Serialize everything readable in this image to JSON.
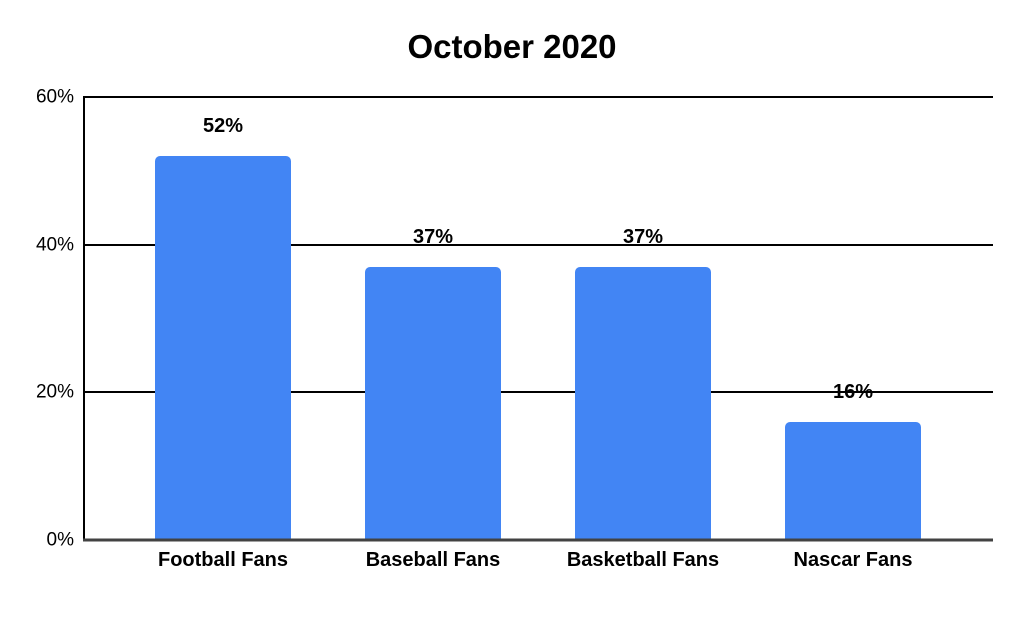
{
  "chart_data": {
    "type": "bar",
    "title": "October 2020",
    "categories": [
      "Football Fans",
      "Baseball Fans",
      "Basketball Fans",
      "Nascar Fans"
    ],
    "values": [
      52,
      37,
      37,
      16
    ],
    "value_labels": [
      "52%",
      "37%",
      "37%",
      "16%"
    ],
    "y_ticks": [
      {
        "value": 0,
        "label": "0%"
      },
      {
        "value": 20,
        "label": "20%"
      },
      {
        "value": 40,
        "label": "40%"
      },
      {
        "value": 60,
        "label": "60%"
      }
    ],
    "ylim": [
      0,
      60
    ],
    "xlabel": "",
    "ylabel": "",
    "grid": true,
    "legend_position": "none",
    "bar_color": "#4285F4",
    "gridline_color": "#000000",
    "baseline_color": "#424242",
    "text_color": "#000000",
    "background_color": "#ffffff"
  }
}
